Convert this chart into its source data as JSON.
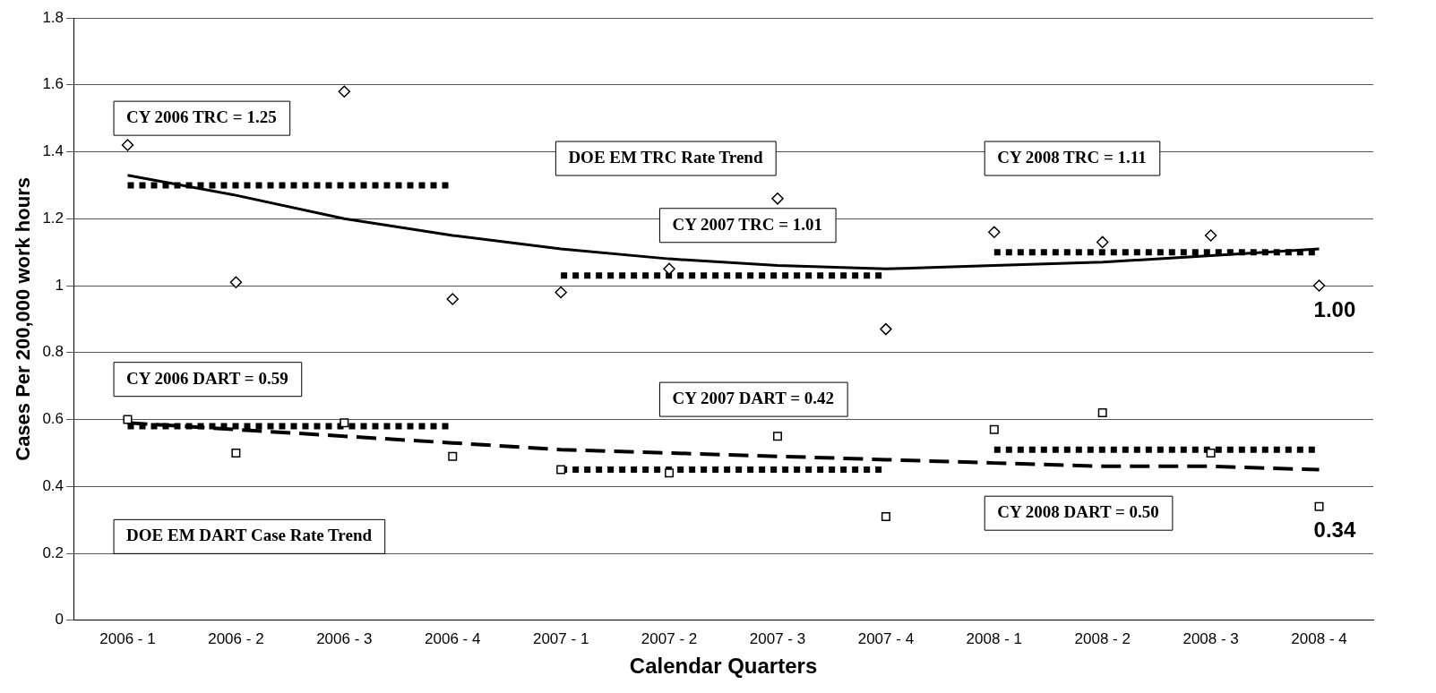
{
  "chart_data": {
    "type": "line",
    "xlabel": "Calendar Quarters",
    "ylabel": "Cases Per 200,000 work hours",
    "categories": [
      "2006 - 1",
      "2006 - 2",
      "2006 - 3",
      "2006 - 4",
      "2007 - 1",
      "2007 - 2",
      "2007 - 3",
      "2007 - 4",
      "2008 - 1",
      "2008 - 2",
      "2008 - 3",
      "2008 - 4"
    ],
    "series": [
      {
        "line_style": "dotted",
        "color": "#000000",
        "values": [
          1.3,
          1.3,
          1.3,
          1.3,
          null,
          null,
          null,
          null,
          null,
          null,
          null,
          null
        ]
      },
      {
        "line_style": "dotted",
        "color": "#000000",
        "values": [
          null,
          null,
          null,
          null,
          1.03,
          1.03,
          1.03,
          1.03,
          null,
          null,
          null,
          null
        ]
      },
      {
        "line_style": "dotted",
        "color": "#000000",
        "values": [
          null,
          null,
          null,
          null,
          null,
          null,
          null,
          null,
          1.1,
          1.1,
          1.1,
          1.1
        ]
      },
      {
        "line_style": "dotted",
        "color": "#000000",
        "values": [
          0.58,
          0.58,
          0.58,
          0.58,
          null,
          null,
          null,
          null,
          null,
          null,
          null,
          null
        ]
      },
      {
        "line_style": "dotted",
        "color": "#000000",
        "values": [
          null,
          null,
          null,
          null,
          0.45,
          0.45,
          0.45,
          0.45,
          null,
          null,
          null,
          null
        ]
      },
      {
        "line_style": "dotted",
        "color": "#000000",
        "values": [
          null,
          null,
          null,
          null,
          null,
          null,
          null,
          null,
          0.51,
          0.51,
          0.51,
          0.51
        ]
      },
      {
        "line_style": "solid",
        "color": "#000000",
        "values": [
          1.33,
          1.27,
          1.2,
          1.15,
          1.11,
          1.08,
          1.06,
          1.05,
          1.06,
          1.07,
          1.09,
          1.11
        ]
      },
      {
        "line_style": "dashed",
        "color": "#000000",
        "values": [
          0.59,
          0.57,
          0.55,
          0.53,
          0.51,
          0.5,
          0.49,
          0.48,
          0.47,
          0.46,
          0.46,
          0.45
        ]
      },
      {
        "type": "scatter",
        "marker": "diamond",
        "color": "#000000",
        "values": [
          1.42,
          1.01,
          1.58,
          0.96,
          0.98,
          1.05,
          1.26,
          0.87,
          1.16,
          1.13,
          1.15,
          1.0
        ],
        "value_labels": [
          null,
          null,
          null,
          null,
          null,
          null,
          null,
          null,
          null,
          null,
          null,
          "1.00"
        ]
      },
      {
        "type": "scatter",
        "marker": "square",
        "color": "#000000",
        "values": [
          0.6,
          0.5,
          0.59,
          0.49,
          0.45,
          0.44,
          0.55,
          0.31,
          0.57,
          0.62,
          0.5,
          0.34
        ],
        "value_labels": [
          null,
          null,
          null,
          null,
          null,
          null,
          null,
          null,
          null,
          null,
          null,
          "0.34"
        ]
      }
    ],
    "ylim": [
      0,
      1.8
    ],
    "yticks": [
      0,
      0.2,
      0.4,
      0.6,
      0.8,
      1,
      1.2,
      1.4,
      1.6,
      1.8
    ],
    "grid": "y",
    "legend": false,
    "annotations": [
      "CY 2006 TRC = 1.25",
      "DOE EM TRC Rate Trend",
      "CY 2008 TRC = 1.11",
      "CY 2007 TRC = 1.01",
      "CY 2006 DART = 0.59",
      "CY 2007 DART = 0.42",
      "DOE EM DART Case Rate Trend",
      "CY 2008 DART = 0.50"
    ]
  }
}
